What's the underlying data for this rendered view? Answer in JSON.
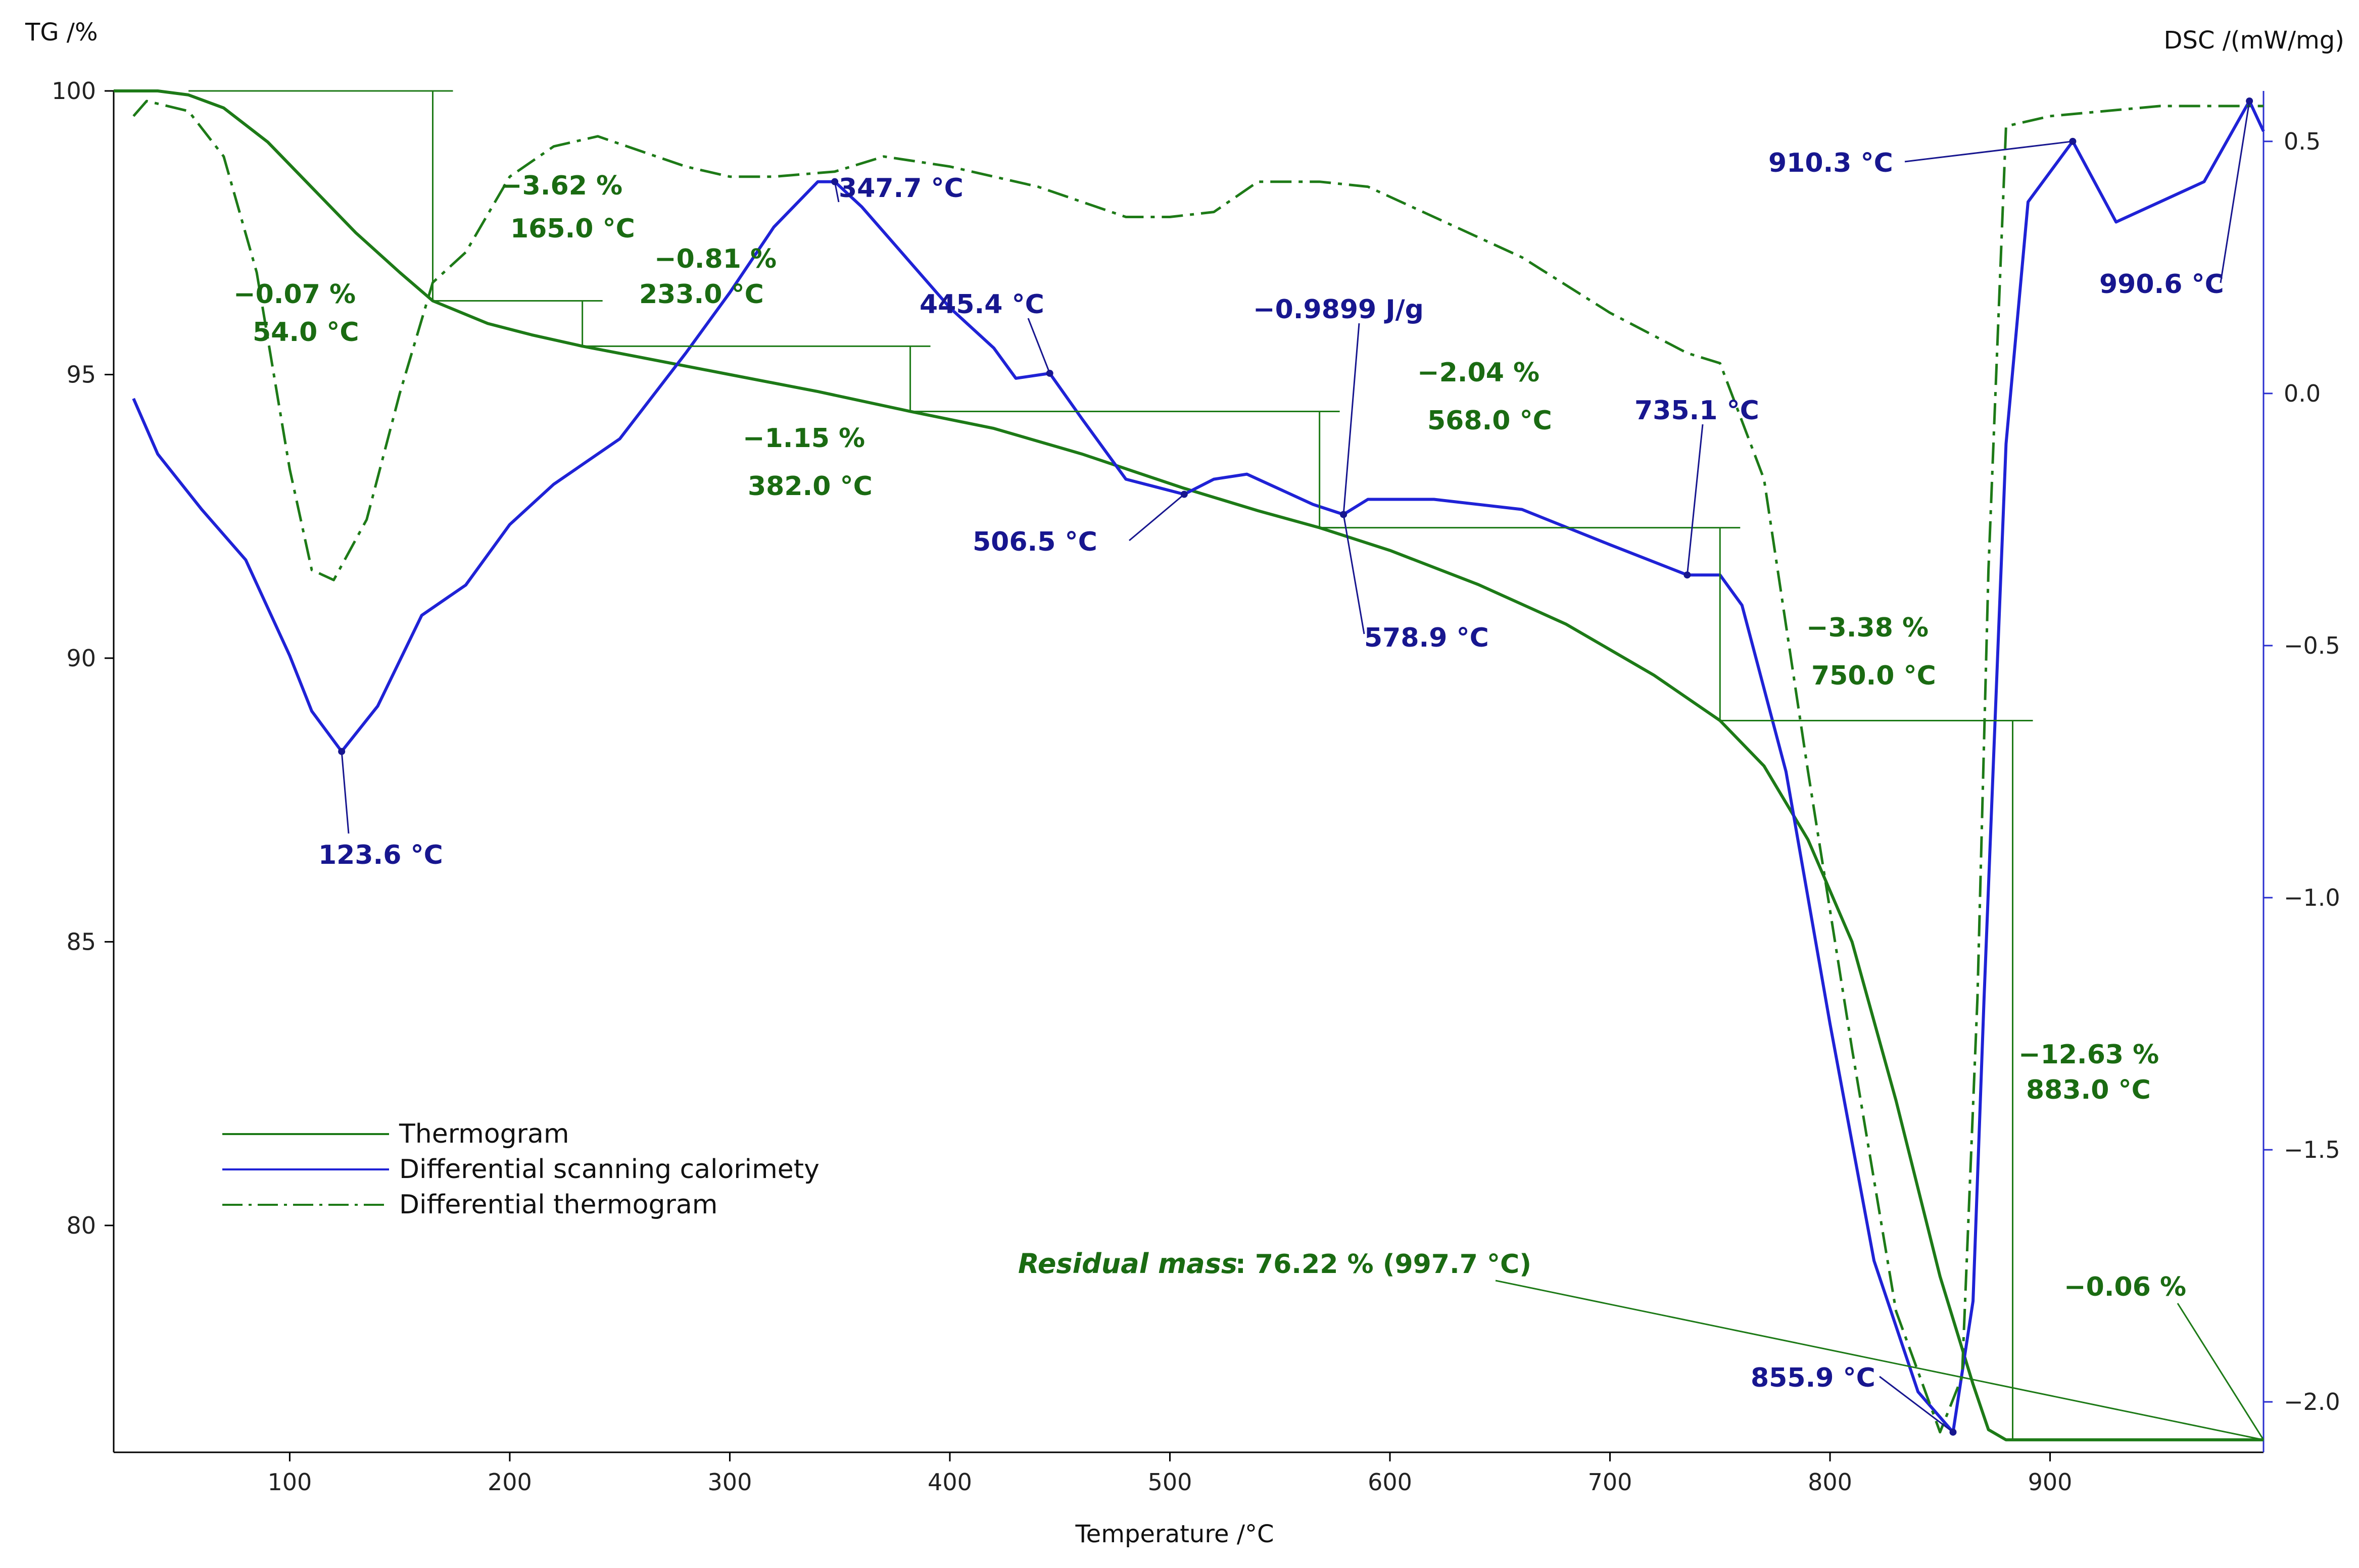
{
  "chart_data": {
    "type": "line",
    "title": "",
    "xlabel": "Temperature /°C",
    "ylabel_left": "TG /%",
    "ylabel_right": "DSC /(mW/mg)",
    "xlim": [
      20,
      997
    ],
    "ylim_left": [
      76,
      100
    ],
    "ylim_right": [
      -2.1,
      0.6
    ],
    "x_ticks": [
      "100",
      "200",
      "300",
      "400",
      "500",
      "600",
      "700",
      "800",
      "900"
    ],
    "y_left_ticks": [
      "100",
      "95",
      "90",
      "85",
      "80"
    ],
    "y_right_ticks": [
      "0.5",
      "0.0",
      "−0.5",
      "−1.0",
      "−1.5",
      "−2.0"
    ],
    "legend": {
      "position": "lower-left",
      "entries": [
        "Thermogram",
        "Differential scanning calorimety",
        "Differential thermogram"
      ]
    },
    "series": [
      {
        "name": "Thermogram",
        "axis": "left",
        "style": "solid",
        "color": "#1d7a17",
        "x": [
          20,
          40,
          54,
          70,
          90,
          110,
          130,
          150,
          165,
          190,
          210,
          233,
          260,
          300,
          340,
          382,
          420,
          460,
          506,
          540,
          568,
          600,
          640,
          680,
          720,
          750,
          770,
          790,
          810,
          830,
          850,
          865,
          872,
          880,
          900,
          950,
          997
        ],
        "values": [
          100,
          100,
          99.93,
          99.7,
          99.1,
          98.3,
          97.5,
          96.8,
          96.3,
          95.9,
          95.7,
          95.5,
          95.3,
          95.0,
          94.7,
          94.35,
          94.05,
          93.6,
          93.0,
          92.6,
          92.3,
          91.9,
          91.3,
          90.6,
          89.7,
          88.9,
          88.1,
          86.8,
          85.0,
          82.2,
          79.1,
          77.2,
          76.4,
          76.22,
          76.22,
          76.22,
          76.22
        ]
      },
      {
        "name": "Differential scanning calorimety",
        "axis": "right",
        "style": "solid",
        "color": "#1f22d6",
        "x": [
          29,
          40,
          60,
          80,
          100,
          110,
          123.6,
          140,
          160,
          180,
          200,
          220,
          250,
          280,
          300,
          320,
          340,
          347.7,
          360,
          380,
          400,
          420,
          430,
          445.4,
          460,
          480,
          506.5,
          520,
          535,
          550,
          565,
          578.9,
          590,
          620,
          660,
          700,
          735.1,
          750,
          760,
          780,
          800,
          820,
          840,
          855.9,
          865,
          870,
          880,
          890,
          910.3,
          930,
          950,
          970,
          990.6,
          997
        ],
        "values": [
          -0.01,
          -0.12,
          -0.23,
          -0.33,
          -0.52,
          -0.63,
          -0.71,
          -0.62,
          -0.44,
          -0.38,
          -0.26,
          -0.18,
          -0.09,
          0.08,
          0.2,
          0.33,
          0.42,
          0.42,
          0.37,
          0.27,
          0.17,
          0.09,
          0.03,
          0.04,
          -0.05,
          -0.17,
          -0.2,
          -0.17,
          -0.16,
          -0.19,
          -0.22,
          -0.24,
          -0.21,
          -0.21,
          -0.23,
          -0.3,
          -0.36,
          -0.36,
          -0.42,
          -0.75,
          -1.25,
          -1.72,
          -1.98,
          -2.06,
          -1.8,
          -1.2,
          -0.1,
          0.38,
          0.5,
          0.34,
          0.38,
          0.42,
          0.58,
          0.52
        ]
      },
      {
        "name": "Differential thermogram",
        "axis": "right",
        "style": "dash-dot",
        "color": "#1d7a17",
        "x": [
          29,
          35,
          54,
          70,
          85,
          100,
          110,
          120,
          135,
          150,
          165,
          180,
          200,
          220,
          240,
          260,
          280,
          300,
          320,
          347.7,
          370,
          400,
          440,
          480,
          500,
          520,
          540,
          568,
          590,
          620,
          660,
          700,
          735.1,
          750,
          770,
          790,
          810,
          830,
          850,
          860,
          867,
          872,
          880,
          900,
          950,
          997
        ],
        "values": [
          0.55,
          0.58,
          0.56,
          0.47,
          0.24,
          -0.15,
          -0.35,
          -0.37,
          -0.25,
          0.0,
          0.22,
          0.28,
          0.43,
          0.49,
          0.51,
          0.48,
          0.45,
          0.43,
          0.43,
          0.44,
          0.47,
          0.45,
          0.41,
          0.35,
          0.35,
          0.36,
          0.42,
          0.42,
          0.41,
          0.35,
          0.27,
          0.16,
          0.08,
          0.06,
          -0.17,
          -0.75,
          -1.3,
          -1.82,
          -2.06,
          -1.95,
          -1.2,
          -0.35,
          0.53,
          0.55,
          0.57,
          0.57
        ]
      }
    ],
    "annotations": [
      {
        "text": "−0.07 %",
        "color": "green",
        "x": 54
      },
      {
        "text": "54.0 °C",
        "color": "green",
        "x": 54
      },
      {
        "text": "−3.62 %",
        "color": "green",
        "x": 165
      },
      {
        "text": "165.0 °C",
        "color": "green",
        "x": 165
      },
      {
        "text": "−0.81 %",
        "color": "green",
        "x": 233
      },
      {
        "text": "233.0 °C",
        "color": "green",
        "x": 233
      },
      {
        "text": "−1.15 %",
        "color": "green",
        "x": 382
      },
      {
        "text": "382.0 °C",
        "color": "green",
        "x": 382
      },
      {
        "text": "−2.04 %",
        "color": "green",
        "x": 568
      },
      {
        "text": "568.0 °C",
        "color": "green",
        "x": 568
      },
      {
        "text": "−3.38 %",
        "color": "green",
        "x": 750
      },
      {
        "text": "750.0 °C",
        "color": "green",
        "x": 750
      },
      {
        "text": "−12.63 %",
        "color": "green",
        "x": 883
      },
      {
        "text": "883.0 °C",
        "color": "green",
        "x": 883
      },
      {
        "text": "−0.06 %",
        "color": "green",
        "x": 997
      },
      {
        "text": "123.6 °C",
        "color": "blue",
        "x": 123.6
      },
      {
        "text": "347.7 °C",
        "color": "blue",
        "x": 347.7
      },
      {
        "text": "445.4 °C",
        "color": "blue",
        "x": 445.4
      },
      {
        "text": "506.5 °C",
        "color": "blue",
        "x": 506.5
      },
      {
        "text": "−0.9899 J/g",
        "color": "blue",
        "x": 578.9
      },
      {
        "text": "578.9 °C",
        "color": "blue",
        "x": 578.9
      },
      {
        "text": "735.1 °C",
        "color": "blue",
        "x": 735.1
      },
      {
        "text": "855.9 °C",
        "color": "blue",
        "x": 855.9
      },
      {
        "text": "910.3 °C",
        "color": "blue",
        "x": 910.3
      },
      {
        "text": "990.6 °C",
        "color": "blue",
        "x": 990.6
      }
    ],
    "residual": {
      "label": "Residual mass",
      "value": ": 76.22 % (997.7 °C)"
    }
  }
}
